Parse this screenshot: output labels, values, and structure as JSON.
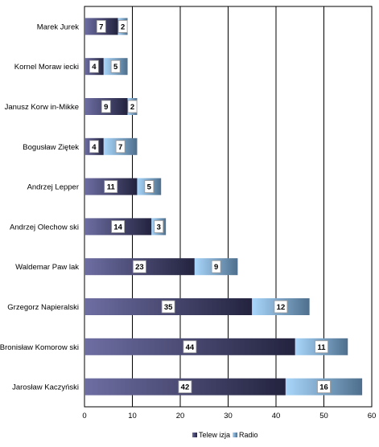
{
  "chart_data": {
    "type": "bar",
    "orientation": "horizontal",
    "stacked": true,
    "categories": [
      "Marek Jurek",
      "Kornel Moraw iecki",
      "Janusz Korw in-Mikke",
      "Bogusław  Ziętek",
      "Andrzej Lepper",
      "Andrzej Olechow ski",
      "Waldemar Paw lak",
      "Grzegorz Napieralski",
      "Bronisław  Komorow ski",
      "Jarosław  Kaczyński"
    ],
    "series": [
      {
        "name": "Telew izja",
        "values": [
          7,
          4,
          9,
          4,
          11,
          14,
          23,
          35,
          44,
          42
        ],
        "color_start": "#6e6ea3",
        "color_end": "#23233f"
      },
      {
        "name": "Radio",
        "values": [
          2,
          5,
          2,
          7,
          5,
          3,
          9,
          12,
          11,
          16
        ],
        "color_start": "#a9d6fb",
        "color_end": "#4e6f8d"
      }
    ],
    "xlim": [
      0,
      60
    ],
    "xticks": [
      0,
      10,
      20,
      30,
      40,
      50,
      60
    ],
    "grid": true,
    "legend_position": "bottom"
  }
}
